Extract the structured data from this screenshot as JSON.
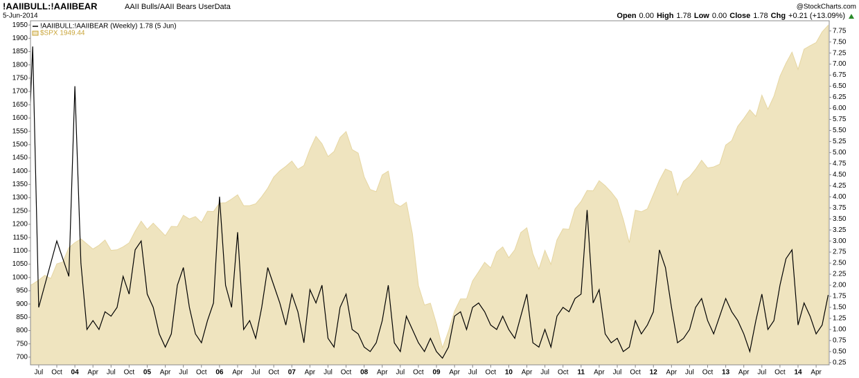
{
  "chart_data": {
    "type": "line",
    "title": "!AAIIBULL:!AAIIBEAR",
    "subtitle": "AAII Bulls/AAII Bears UserData",
    "date": "5-Jun-2014",
    "credit": "@StockCharts.com",
    "quote": {
      "open_label": "Open",
      "open": "0.00",
      "high_label": "High",
      "high": "1.78",
      "low_label": "Low",
      "low": "0.00",
      "close_label": "Close",
      "close": "1.78",
      "chg_label": "Chg",
      "chg": "+0.21 (+13.09%)"
    },
    "x": [
      "2003-05",
      "2003-06",
      "2003-07",
      "2003-08",
      "2003-09",
      "2003-10",
      "2003-11",
      "2003-12",
      "2004-01",
      "2004-02",
      "2004-03",
      "2004-04",
      "2004-05",
      "2004-06",
      "2004-07",
      "2004-08",
      "2004-09",
      "2004-10",
      "2004-11",
      "2004-12",
      "2005-01",
      "2005-02",
      "2005-03",
      "2005-04",
      "2005-05",
      "2005-06",
      "2005-07",
      "2005-08",
      "2005-09",
      "2005-10",
      "2005-11",
      "2005-12",
      "2006-01",
      "2006-02",
      "2006-03",
      "2006-04",
      "2006-05",
      "2006-06",
      "2006-07",
      "2006-08",
      "2006-09",
      "2006-10",
      "2006-11",
      "2006-12",
      "2007-01",
      "2007-02",
      "2007-03",
      "2007-04",
      "2007-05",
      "2007-06",
      "2007-07",
      "2007-08",
      "2007-09",
      "2007-10",
      "2007-11",
      "2007-12",
      "2008-01",
      "2008-02",
      "2008-03",
      "2008-04",
      "2008-05",
      "2008-06",
      "2008-07",
      "2008-08",
      "2008-09",
      "2008-10",
      "2008-11",
      "2008-12",
      "2009-01",
      "2009-02",
      "2009-03",
      "2009-04",
      "2009-05",
      "2009-06",
      "2009-07",
      "2009-08",
      "2009-09",
      "2009-10",
      "2009-11",
      "2009-12",
      "2010-01",
      "2010-02",
      "2010-03",
      "2010-04",
      "2010-05",
      "2010-06",
      "2010-07",
      "2010-08",
      "2010-09",
      "2010-10",
      "2010-11",
      "2010-12",
      "2011-01",
      "2011-02",
      "2011-03",
      "2011-04",
      "2011-05",
      "2011-06",
      "2011-07",
      "2011-08",
      "2011-09",
      "2011-10",
      "2011-11",
      "2011-12",
      "2012-01",
      "2012-02",
      "2012-03",
      "2012-04",
      "2012-05",
      "2012-06",
      "2012-07",
      "2012-08",
      "2012-09",
      "2012-10",
      "2012-11",
      "2012-12",
      "2013-01",
      "2013-02",
      "2013-03",
      "2013-04",
      "2013-05",
      "2013-06",
      "2013-07",
      "2013-08",
      "2013-09",
      "2013-10",
      "2013-11",
      "2013-12",
      "2014-01",
      "2014-02",
      "2014-03",
      "2014-04",
      "2014-05",
      "2014-06"
    ],
    "series": [
      {
        "name": "$SPX 1949.44",
        "color": "#efe4bf",
        "axis": "y",
        "style": "area",
        "values": [
          964,
          975,
          990,
          1008,
          996,
          1051,
          1058,
          1112,
          1131,
          1145,
          1126,
          1107,
          1121,
          1141,
          1102,
          1104,
          1115,
          1130,
          1174,
          1212,
          1181,
          1204,
          1181,
          1157,
          1192,
          1191,
          1234,
          1220,
          1229,
          1207,
          1249,
          1248,
          1280,
          1281,
          1295,
          1311,
          1270,
          1270,
          1277,
          1304,
          1336,
          1378,
          1401,
          1418,
          1438,
          1407,
          1421,
          1482,
          1531,
          1503,
          1455,
          1474,
          1527,
          1549,
          1481,
          1468,
          1379,
          1331,
          1323,
          1386,
          1400,
          1280,
          1267,
          1283,
          1165,
          969,
          896,
          903,
          826,
          735,
          798,
          873,
          919,
          919,
          987,
          1021,
          1057,
          1036,
          1096,
          1115,
          1074,
          1104,
          1169,
          1187,
          1089,
          1031,
          1102,
          1049,
          1141,
          1183,
          1181,
          1258,
          1286,
          1327,
          1326,
          1364,
          1345,
          1321,
          1292,
          1219,
          1131,
          1253,
          1247,
          1258,
          1312,
          1366,
          1408,
          1398,
          1310,
          1362,
          1379,
          1407,
          1441,
          1412,
          1416,
          1426,
          1498,
          1515,
          1569,
          1598,
          1631,
          1606,
          1686,
          1633,
          1682,
          1757,
          1806,
          1848,
          1783,
          1859,
          1872,
          1884,
          1924,
          1949
        ]
      },
      {
        "name": "!AAIIBULL:!AAIIBEAR (Weekly) 1.78 (5 Jun)",
        "color": "#000000",
        "axis": "y2",
        "style": "line",
        "values": [
          4.0,
          7.4,
          1.5,
          2.0,
          2.5,
          3.0,
          2.6,
          2.2,
          6.5,
          2.5,
          1.0,
          1.2,
          1.0,
          1.4,
          1.3,
          1.5,
          2.2,
          1.8,
          2.8,
          3.0,
          1.8,
          1.5,
          0.9,
          0.6,
          0.9,
          2.0,
          2.4,
          1.5,
          0.9,
          0.7,
          1.2,
          1.6,
          4.0,
          2.0,
          1.5,
          3.2,
          1.0,
          1.2,
          0.8,
          1.5,
          2.4,
          2.0,
          1.6,
          1.1,
          1.8,
          1.4,
          0.7,
          1.9,
          1.6,
          2.0,
          0.8,
          0.6,
          1.5,
          1.8,
          1.0,
          0.9,
          0.6,
          0.5,
          0.7,
          1.2,
          2.0,
          0.7,
          0.5,
          1.3,
          1.0,
          0.7,
          0.5,
          0.8,
          0.5,
          0.35,
          0.6,
          1.3,
          1.4,
          1.0,
          1.5,
          1.6,
          1.4,
          1.1,
          1.0,
          1.3,
          1.0,
          0.8,
          1.3,
          1.8,
          0.7,
          0.6,
          1.0,
          0.6,
          1.3,
          1.5,
          1.4,
          1.7,
          1.8,
          3.7,
          1.6,
          1.9,
          0.9,
          0.7,
          0.8,
          0.5,
          0.6,
          1.2,
          0.9,
          1.1,
          1.4,
          2.8,
          2.4,
          1.5,
          0.7,
          0.8,
          1.0,
          1.5,
          1.7,
          1.2,
          0.9,
          1.3,
          1.7,
          1.4,
          1.2,
          0.9,
          0.5,
          1.2,
          1.8,
          1.0,
          1.2,
          2.0,
          2.6,
          2.8,
          1.1,
          1.6,
          1.3,
          0.9,
          1.1,
          1.78
        ]
      }
    ],
    "ylim": [
      671,
      1966
    ],
    "yticks": [
      700,
      750,
      800,
      850,
      900,
      950,
      1000,
      1050,
      1100,
      1150,
      1200,
      1250,
      1300,
      1350,
      1400,
      1450,
      1500,
      1550,
      1600,
      1650,
      1700,
      1750,
      1800,
      1850,
      1900,
      1950
    ],
    "y2lim": [
      0.2,
      7.98
    ],
    "y2ticks": [
      0.25,
      {
        "value": 0.5,
        "label": "0.50"
      },
      0.75,
      {
        "value": 1,
        "label": "1.00"
      },
      1.25,
      {
        "value": 1.5,
        "label": "1.50"
      },
      1.75,
      {
        "value": 2,
        "label": "2.00"
      },
      2.25,
      {
        "value": 2.5,
        "label": "2.50"
      },
      2.75,
      {
        "value": 3,
        "label": "3.00"
      },
      3.25,
      {
        "value": 3.5,
        "label": "3.50"
      },
      3.75,
      {
        "value": 4,
        "label": "4.00"
      },
      4.25,
      {
        "value": 4.5,
        "label": "4.50"
      },
      4.75,
      {
        "value": 5,
        "label": "5.00"
      },
      5.25,
      {
        "value": 5.5,
        "label": "5.50"
      },
      5.75,
      {
        "value": 6,
        "label": "6.00"
      },
      6.25,
      {
        "value": 6.5,
        "label": "6.50"
      },
      6.75,
      {
        "value": 7,
        "label": "7.00"
      },
      7.25,
      {
        "value": 7.5,
        "label": "7.50"
      },
      7.75
    ],
    "xticks": [
      {
        "value": "2003-07",
        "label": "Jul"
      },
      {
        "value": "2003-10",
        "label": "Oct"
      },
      {
        "value": "2004-01",
        "label": "04"
      },
      {
        "value": "2004-04",
        "label": "Apr"
      },
      {
        "value": "2004-07",
        "label": "Jul"
      },
      {
        "value": "2004-10",
        "label": "Oct"
      },
      {
        "value": "2005-01",
        "label": "05"
      },
      {
        "value": "2005-04",
        "label": "Apr"
      },
      {
        "value": "2005-07",
        "label": "Jul"
      },
      {
        "value": "2005-10",
        "label": "Oct"
      },
      {
        "value": "2006-01",
        "label": "06"
      },
      {
        "value": "2006-04",
        "label": "Apr"
      },
      {
        "value": "2006-07",
        "label": "Jul"
      },
      {
        "value": "2006-10",
        "label": "Oct"
      },
      {
        "value": "2007-01",
        "label": "07"
      },
      {
        "value": "2007-04",
        "label": "Apr"
      },
      {
        "value": "2007-07",
        "label": "Jul"
      },
      {
        "value": "2007-10",
        "label": "Oct"
      },
      {
        "value": "2008-01",
        "label": "08"
      },
      {
        "value": "2008-04",
        "label": "Apr"
      },
      {
        "value": "2008-07",
        "label": "Jul"
      },
      {
        "value": "2008-10",
        "label": "Oct"
      },
      {
        "value": "2009-01",
        "label": "09"
      },
      {
        "value": "2009-04",
        "label": "Apr"
      },
      {
        "value": "2009-07",
        "label": "Jul"
      },
      {
        "value": "2009-10",
        "label": "Oct"
      },
      {
        "value": "2010-01",
        "label": "10"
      },
      {
        "value": "2010-04",
        "label": "Apr"
      },
      {
        "value": "2010-07",
        "label": "Jul"
      },
      {
        "value": "2010-10",
        "label": "Oct"
      },
      {
        "value": "2011-01",
        "label": "11"
      },
      {
        "value": "2011-04",
        "label": "Apr"
      },
      {
        "value": "2011-07",
        "label": "Jul"
      },
      {
        "value": "2011-10",
        "label": "Oct"
      },
      {
        "value": "2012-01",
        "label": "12"
      },
      {
        "value": "2012-04",
        "label": "Apr"
      },
      {
        "value": "2012-07",
        "label": "Jul"
      },
      {
        "value": "2012-10",
        "label": "Oct"
      },
      {
        "value": "2013-01",
        "label": "13"
      },
      {
        "value": "2013-04",
        "label": "Apr"
      },
      {
        "value": "2013-07",
        "label": "Jul"
      },
      {
        "value": "2013-10",
        "label": "Oct"
      },
      {
        "value": "2014-01",
        "label": "14"
      },
      {
        "value": "2014-04",
        "label": "Apr"
      }
    ]
  }
}
